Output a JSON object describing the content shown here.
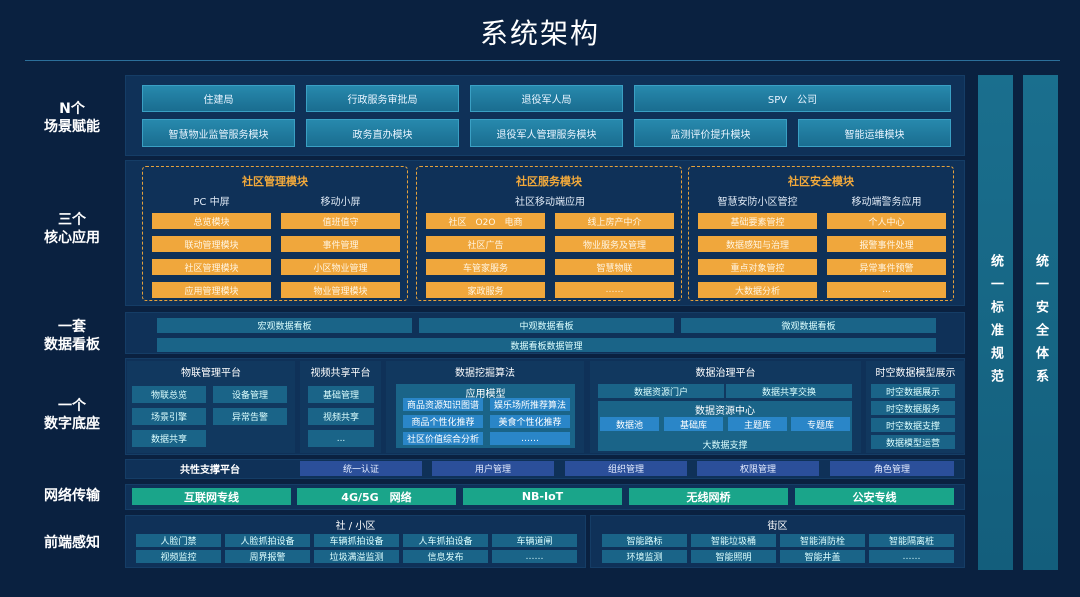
{
  "title": "系统架构",
  "layers": {
    "l1": "N个\n场景赋能",
    "l2": "三个\n核心应用",
    "l3": "一套\n数据看板",
    "l4": "一个\n数字底座",
    "l5": "网络传输",
    "l6": "前端感知"
  },
  "scenes": {
    "row1": [
      "住建局",
      "行政服务审批局",
      "退役军人局",
      "SPV　公司"
    ],
    "row2": [
      "智慧物业监管服务模块",
      "政务直办模块",
      "退役军人管理服务模块",
      "监测评价提升模块",
      "智能运维模块"
    ]
  },
  "core": [
    {
      "title": "社区管理模块",
      "cols": [
        {
          "head": "PC 中屏",
          "items": [
            "总览模块",
            "联动管理模块",
            "社区管理模块",
            "应用管理模块"
          ]
        },
        {
          "head": "移动小屏",
          "items": [
            "值班值守",
            "事件管理",
            "小区物业管理",
            "物业管理模块"
          ]
        }
      ]
    },
    {
      "title": "社区服务模块",
      "cols": [
        {
          "head": "社区移动端应用",
          "items": [
            "社区　O2O　电商",
            "社区广告",
            "车管家服务",
            "家政服务"
          ]
        },
        {
          "head": "",
          "items": [
            "线上房产中介",
            "物业服务及管理",
            "智慧物联",
            "……"
          ]
        }
      ]
    },
    {
      "title": "社区安全模块",
      "cols": [
        {
          "head": "智慧安防小区管控",
          "items": [
            "基础要素管控",
            "数据感知与治理",
            "重点对象管控",
            "大数据分析"
          ]
        },
        {
          "head": "移动端警务应用",
          "items": [
            "个人中心",
            "报警事件处理",
            "异常事件预警",
            "..."
          ]
        }
      ]
    }
  ],
  "dashboard": {
    "items": [
      "宏观数据看板",
      "中观数据看板",
      "微观数据看板"
    ],
    "manage": "数据看板数据管理"
  },
  "base": {
    "iot": {
      "title": "物联管理平台",
      "items": [
        "物联总览",
        "设备管理",
        "场景引擎",
        "异常告警",
        "数据共享"
      ]
    },
    "video": {
      "title": "视频共享平台",
      "items": [
        "基础管理",
        "视频共享",
        "..."
      ]
    },
    "mining": {
      "title": "数据挖掘算法",
      "model": "应用模型",
      "items": [
        "商品资源知识图谱",
        "娱乐场所推荐算法",
        "商品个性化推荐",
        "美食个性化推荐",
        "社区价值综合分析",
        "……"
      ]
    },
    "gov": {
      "title": "数据治理平台",
      "portal": "数据资源门户",
      "share": "数据共享交换",
      "center": "数据资源中心",
      "libs": [
        "数据池",
        "基础库",
        "主题库",
        "专题库"
      ],
      "bigdata": "大数据支撑"
    },
    "spatial": {
      "title": "时空数据模型展示",
      "items": [
        "时空数据展示",
        "时空数据服务",
        "时空数据支撑",
        "数据模型运营"
      ]
    }
  },
  "common": {
    "title": "共性支撑平台",
    "items": [
      "统一认证",
      "用户管理",
      "组织管理",
      "权限管理",
      "角色管理"
    ]
  },
  "network": [
    "互联网专线",
    "4G/5G　网络",
    "NB-IoT",
    "无线网桥",
    "公安专线"
  ],
  "frontend": {
    "community": {
      "title": "社 / 小区",
      "items": [
        "人脸门禁",
        "人脸抓拍设备",
        "车辆抓拍设备",
        "人车抓拍设备",
        "车辆道闸",
        "视频监控",
        "周界报警",
        "垃圾满溢监测",
        "信息发布",
        "……"
      ]
    },
    "street": {
      "title": "街区",
      "items": [
        "智能路标",
        "智能垃圾桶",
        "智能消防栓",
        "智能隔离桩",
        "环境监测",
        "智能照明",
        "智能井盖",
        "……"
      ]
    }
  },
  "side": [
    "统一标准规范",
    "统一安全体系"
  ],
  "colors": {
    "background": "#0a2140",
    "orange": "#f0a73c",
    "green": "#1aa58a",
    "teal": "#1f7a9a"
  }
}
